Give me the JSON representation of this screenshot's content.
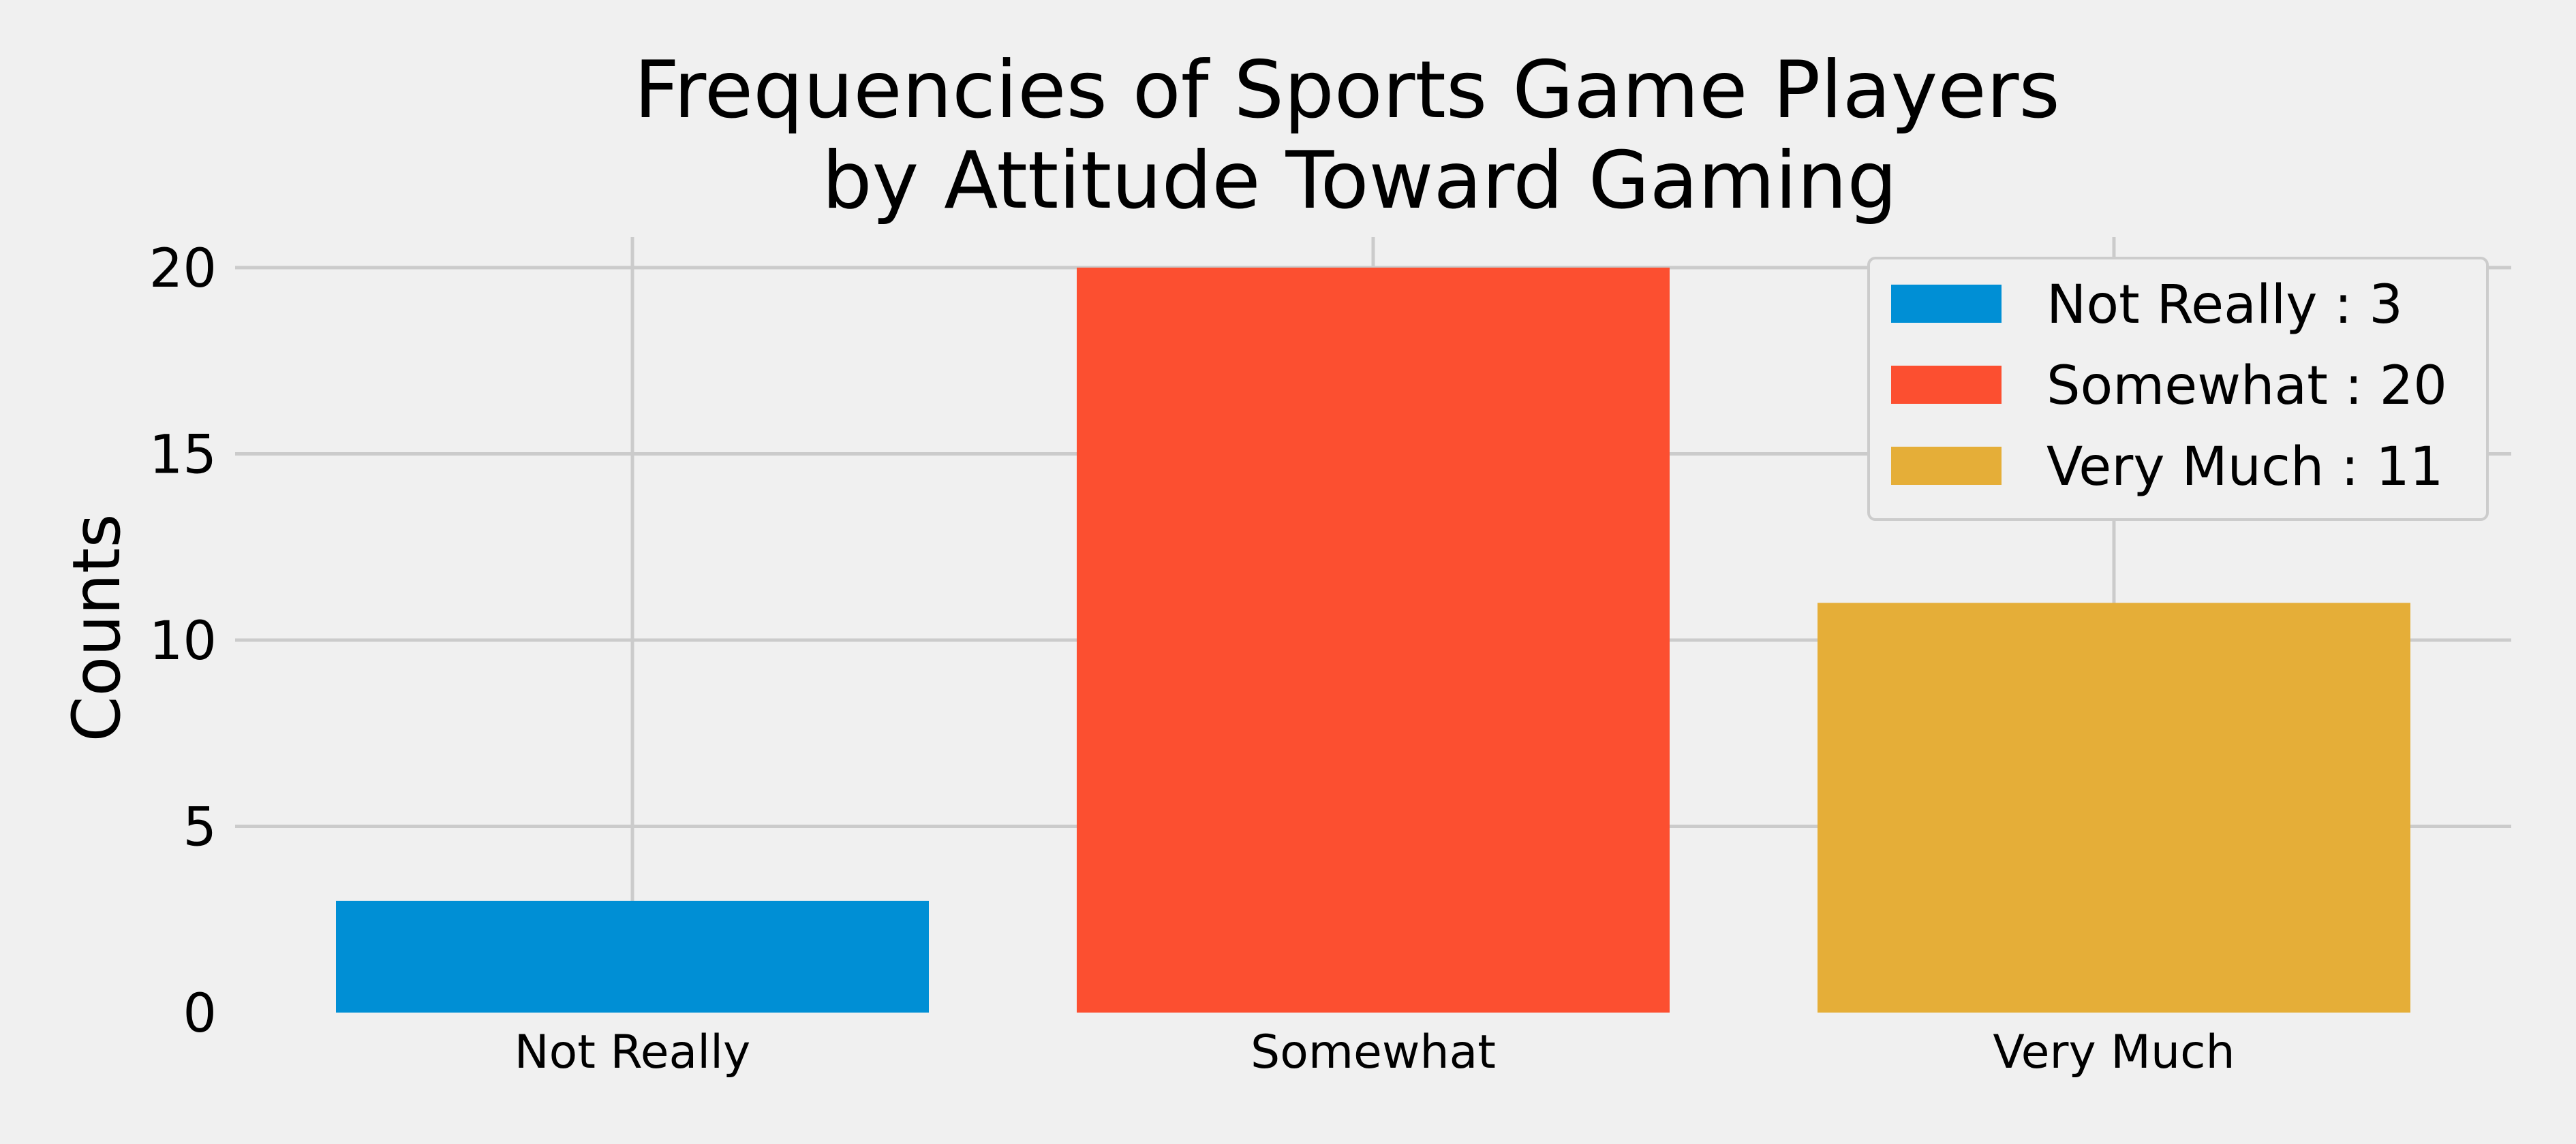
{
  "chart_data": {
    "type": "bar",
    "title": "Frequencies of Sports Game Players\nby Attitude Toward Gaming",
    "title_lines": [
      "Frequencies of Sports Game Players",
      "by Attitude Toward Gaming"
    ],
    "xlabel": "",
    "ylabel": "Counts",
    "categories": [
      "Not Really",
      "Somewhat",
      "Very Much"
    ],
    "values": [
      3,
      20,
      11
    ],
    "colors": [
      "#008fd5",
      "#fc4f30",
      "#e5ae38"
    ],
    "ylim": [
      0,
      20
    ],
    "yticks": [
      0,
      5,
      10,
      15,
      20
    ],
    "grid": true,
    "legend_position": "top-right",
    "legend_entries": [
      "Not Really : 3",
      "Somewhat : 20",
      "Very Much : 11"
    ],
    "background": "#f0f0f0",
    "grid_color": "#cbcbcb"
  }
}
